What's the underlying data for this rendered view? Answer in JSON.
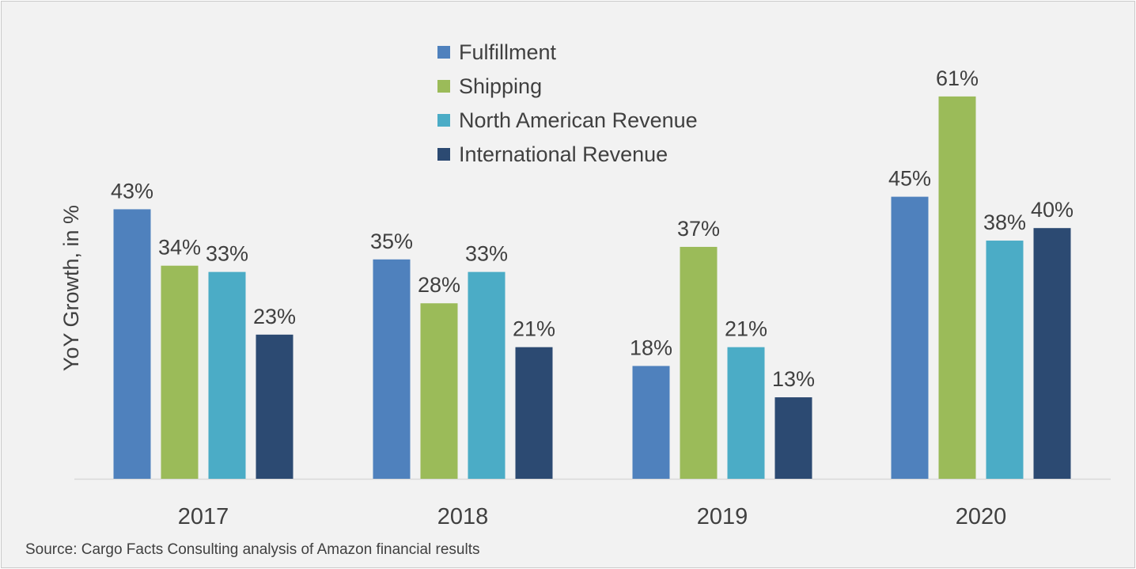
{
  "chart_data": {
    "type": "bar",
    "categories": [
      "2017",
      "2018",
      "2019",
      "2020"
    ],
    "series": [
      {
        "name": "Fulfillment",
        "values": [
          43,
          35,
          18,
          45
        ],
        "color": "#4f81bd"
      },
      {
        "name": "Shipping",
        "values": [
          34,
          28,
          37,
          61
        ],
        "color": "#9bbb59"
      },
      {
        "name": "North American Revenue",
        "values": [
          33,
          33,
          21,
          38
        ],
        "color": "#4bacc6"
      },
      {
        "name": "International Revenue",
        "values": [
          23,
          21,
          13,
          40
        ],
        "color": "#2c4a72"
      }
    ],
    "data_label_suffix": "%",
    "xlabel": "",
    "ylabel": "YoY Growth, in %",
    "ylim": [
      0,
      70
    ],
    "grid": false,
    "legend_position": "top-center"
  },
  "source_text": "Source: Cargo Facts Consulting analysis of Amazon financial results"
}
